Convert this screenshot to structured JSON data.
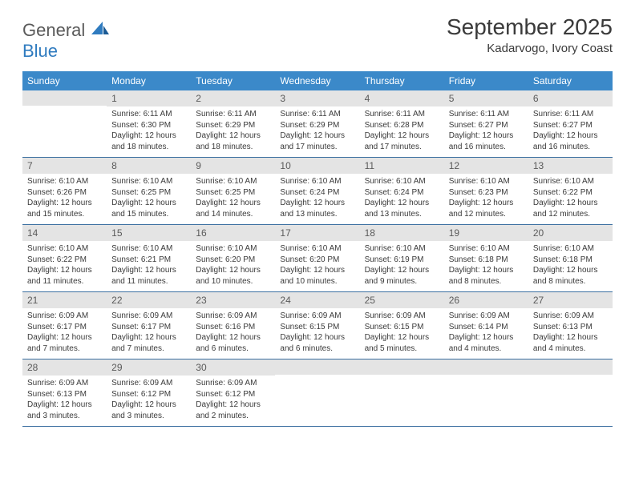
{
  "logo": {
    "word1": "General",
    "word2": "Blue"
  },
  "title": "September 2025",
  "subtitle": "Kadarvogo, Ivory Coast",
  "day_headers": [
    "Sunday",
    "Monday",
    "Tuesday",
    "Wednesday",
    "Thursday",
    "Friday",
    "Saturday"
  ],
  "colors": {
    "header_bg": "#3b89c9",
    "header_text": "#ffffff",
    "daynum_bg": "#e4e4e4",
    "daynum_text": "#5a5a5a",
    "border": "#3b6fa0",
    "body_text": "#3a3a3a",
    "logo_gray": "#5a5a5a",
    "logo_blue": "#2f7bbf"
  },
  "weeks": [
    [
      {
        "n": "",
        "sr": "",
        "ss": "",
        "d1": "",
        "d2": ""
      },
      {
        "n": "1",
        "sr": "Sunrise: 6:11 AM",
        "ss": "Sunset: 6:30 PM",
        "d1": "Daylight: 12 hours",
        "d2": "and 18 minutes."
      },
      {
        "n": "2",
        "sr": "Sunrise: 6:11 AM",
        "ss": "Sunset: 6:29 PM",
        "d1": "Daylight: 12 hours",
        "d2": "and 18 minutes."
      },
      {
        "n": "3",
        "sr": "Sunrise: 6:11 AM",
        "ss": "Sunset: 6:29 PM",
        "d1": "Daylight: 12 hours",
        "d2": "and 17 minutes."
      },
      {
        "n": "4",
        "sr": "Sunrise: 6:11 AM",
        "ss": "Sunset: 6:28 PM",
        "d1": "Daylight: 12 hours",
        "d2": "and 17 minutes."
      },
      {
        "n": "5",
        "sr": "Sunrise: 6:11 AM",
        "ss": "Sunset: 6:27 PM",
        "d1": "Daylight: 12 hours",
        "d2": "and 16 minutes."
      },
      {
        "n": "6",
        "sr": "Sunrise: 6:11 AM",
        "ss": "Sunset: 6:27 PM",
        "d1": "Daylight: 12 hours",
        "d2": "and 16 minutes."
      }
    ],
    [
      {
        "n": "7",
        "sr": "Sunrise: 6:10 AM",
        "ss": "Sunset: 6:26 PM",
        "d1": "Daylight: 12 hours",
        "d2": "and 15 minutes."
      },
      {
        "n": "8",
        "sr": "Sunrise: 6:10 AM",
        "ss": "Sunset: 6:25 PM",
        "d1": "Daylight: 12 hours",
        "d2": "and 15 minutes."
      },
      {
        "n": "9",
        "sr": "Sunrise: 6:10 AM",
        "ss": "Sunset: 6:25 PM",
        "d1": "Daylight: 12 hours",
        "d2": "and 14 minutes."
      },
      {
        "n": "10",
        "sr": "Sunrise: 6:10 AM",
        "ss": "Sunset: 6:24 PM",
        "d1": "Daylight: 12 hours",
        "d2": "and 13 minutes."
      },
      {
        "n": "11",
        "sr": "Sunrise: 6:10 AM",
        "ss": "Sunset: 6:24 PM",
        "d1": "Daylight: 12 hours",
        "d2": "and 13 minutes."
      },
      {
        "n": "12",
        "sr": "Sunrise: 6:10 AM",
        "ss": "Sunset: 6:23 PM",
        "d1": "Daylight: 12 hours",
        "d2": "and 12 minutes."
      },
      {
        "n": "13",
        "sr": "Sunrise: 6:10 AM",
        "ss": "Sunset: 6:22 PM",
        "d1": "Daylight: 12 hours",
        "d2": "and 12 minutes."
      }
    ],
    [
      {
        "n": "14",
        "sr": "Sunrise: 6:10 AM",
        "ss": "Sunset: 6:22 PM",
        "d1": "Daylight: 12 hours",
        "d2": "and 11 minutes."
      },
      {
        "n": "15",
        "sr": "Sunrise: 6:10 AM",
        "ss": "Sunset: 6:21 PM",
        "d1": "Daylight: 12 hours",
        "d2": "and 11 minutes."
      },
      {
        "n": "16",
        "sr": "Sunrise: 6:10 AM",
        "ss": "Sunset: 6:20 PM",
        "d1": "Daylight: 12 hours",
        "d2": "and 10 minutes."
      },
      {
        "n": "17",
        "sr": "Sunrise: 6:10 AM",
        "ss": "Sunset: 6:20 PM",
        "d1": "Daylight: 12 hours",
        "d2": "and 10 minutes."
      },
      {
        "n": "18",
        "sr": "Sunrise: 6:10 AM",
        "ss": "Sunset: 6:19 PM",
        "d1": "Daylight: 12 hours",
        "d2": "and 9 minutes."
      },
      {
        "n": "19",
        "sr": "Sunrise: 6:10 AM",
        "ss": "Sunset: 6:18 PM",
        "d1": "Daylight: 12 hours",
        "d2": "and 8 minutes."
      },
      {
        "n": "20",
        "sr": "Sunrise: 6:10 AM",
        "ss": "Sunset: 6:18 PM",
        "d1": "Daylight: 12 hours",
        "d2": "and 8 minutes."
      }
    ],
    [
      {
        "n": "21",
        "sr": "Sunrise: 6:09 AM",
        "ss": "Sunset: 6:17 PM",
        "d1": "Daylight: 12 hours",
        "d2": "and 7 minutes."
      },
      {
        "n": "22",
        "sr": "Sunrise: 6:09 AM",
        "ss": "Sunset: 6:17 PM",
        "d1": "Daylight: 12 hours",
        "d2": "and 7 minutes."
      },
      {
        "n": "23",
        "sr": "Sunrise: 6:09 AM",
        "ss": "Sunset: 6:16 PM",
        "d1": "Daylight: 12 hours",
        "d2": "and 6 minutes."
      },
      {
        "n": "24",
        "sr": "Sunrise: 6:09 AM",
        "ss": "Sunset: 6:15 PM",
        "d1": "Daylight: 12 hours",
        "d2": "and 6 minutes."
      },
      {
        "n": "25",
        "sr": "Sunrise: 6:09 AM",
        "ss": "Sunset: 6:15 PM",
        "d1": "Daylight: 12 hours",
        "d2": "and 5 minutes."
      },
      {
        "n": "26",
        "sr": "Sunrise: 6:09 AM",
        "ss": "Sunset: 6:14 PM",
        "d1": "Daylight: 12 hours",
        "d2": "and 4 minutes."
      },
      {
        "n": "27",
        "sr": "Sunrise: 6:09 AM",
        "ss": "Sunset: 6:13 PM",
        "d1": "Daylight: 12 hours",
        "d2": "and 4 minutes."
      }
    ],
    [
      {
        "n": "28",
        "sr": "Sunrise: 6:09 AM",
        "ss": "Sunset: 6:13 PM",
        "d1": "Daylight: 12 hours",
        "d2": "and 3 minutes."
      },
      {
        "n": "29",
        "sr": "Sunrise: 6:09 AM",
        "ss": "Sunset: 6:12 PM",
        "d1": "Daylight: 12 hours",
        "d2": "and 3 minutes."
      },
      {
        "n": "30",
        "sr": "Sunrise: 6:09 AM",
        "ss": "Sunset: 6:12 PM",
        "d1": "Daylight: 12 hours",
        "d2": "and 2 minutes."
      },
      {
        "n": "",
        "sr": "",
        "ss": "",
        "d1": "",
        "d2": ""
      },
      {
        "n": "",
        "sr": "",
        "ss": "",
        "d1": "",
        "d2": ""
      },
      {
        "n": "",
        "sr": "",
        "ss": "",
        "d1": "",
        "d2": ""
      },
      {
        "n": "",
        "sr": "",
        "ss": "",
        "d1": "",
        "d2": ""
      }
    ]
  ]
}
